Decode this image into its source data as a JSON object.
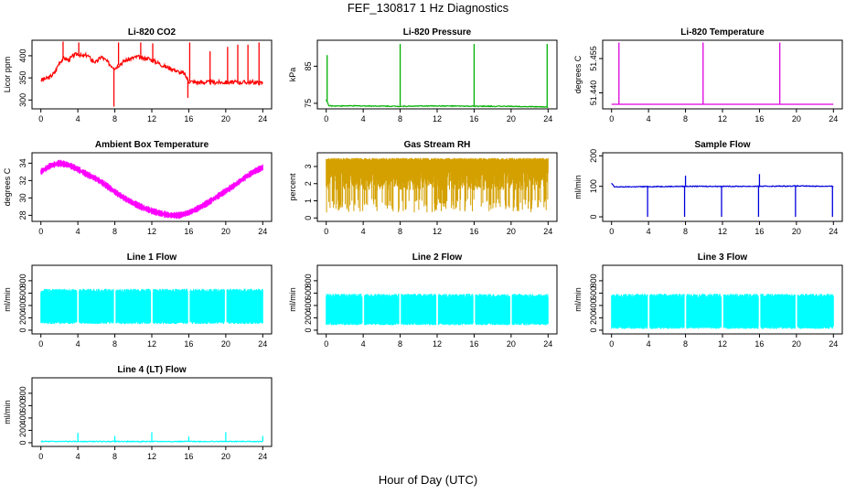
{
  "figure": {
    "title": "FEF_130817  1 Hz Diagnostics",
    "xlabel": "Hour of Day (UTC)"
  },
  "chart_data": [
    {
      "type": "line",
      "title": "Li-820 CO2",
      "ylabel": "Licor ppm",
      "color": "#ff0000",
      "xlim": [
        0,
        24
      ],
      "xticks": [
        "0",
        "4",
        "8",
        "12",
        "16",
        "20",
        "24"
      ],
      "ylim": [
        280,
        435
      ],
      "yticks": [
        "300",
        "350",
        "400"
      ],
      "series": [
        {
          "x": [
            0,
            0.5,
            1,
            1.5,
            2,
            2.5,
            3,
            3.5,
            4,
            4.5,
            5,
            5.5,
            6,
            6.5,
            7,
            7.5,
            8,
            8.5,
            9,
            9.5,
            10,
            10.5,
            11,
            11.5,
            12,
            12.5,
            13,
            13.5,
            14,
            14.5,
            15,
            15.5,
            16,
            17,
            18,
            19,
            20,
            21,
            22,
            23,
            24
          ],
          "y": [
            345,
            348,
            352,
            362,
            385,
            395,
            390,
            400,
            405,
            398,
            402,
            390,
            385,
            398,
            390,
            380,
            372,
            380,
            388,
            392,
            395,
            398,
            393,
            395,
            390,
            386,
            380,
            375,
            372,
            368,
            362,
            360,
            342,
            340,
            340,
            340,
            340,
            340,
            340,
            340,
            338
          ]
        }
      ],
      "spikes": [
        {
          "x": 2.4,
          "y": 432
        },
        {
          "x": 4.1,
          "y": 430
        },
        {
          "x": 7.9,
          "y": 285
        },
        {
          "x": 8.4,
          "y": 430
        },
        {
          "x": 10.8,
          "y": 430
        },
        {
          "x": 12.1,
          "y": 428
        },
        {
          "x": 15.9,
          "y": 305
        },
        {
          "x": 16.1,
          "y": 430
        },
        {
          "x": 18.3,
          "y": 410
        },
        {
          "x": 20.2,
          "y": 420
        },
        {
          "x": 21.3,
          "y": 425
        },
        {
          "x": 22.4,
          "y": 425
        },
        {
          "x": 23.6,
          "y": 430
        }
      ]
    },
    {
      "type": "line",
      "title": "Li-820 Pressure",
      "ylabel": "kPa",
      "color": "#00b000",
      "xlim": [
        0,
        24
      ],
      "xticks": [
        "0",
        "4",
        "8",
        "12",
        "16",
        "20",
        "24"
      ],
      "ylim": [
        73.5,
        92
      ],
      "yticks": [
        "75",
        "85"
      ],
      "series": [
        {
          "x": [
            0,
            0.3,
            4,
            8,
            12,
            16,
            20,
            24
          ],
          "y": [
            76,
            74.3,
            74.3,
            74.2,
            74.3,
            74.2,
            74.2,
            74.0
          ]
        }
      ],
      "spikes": [
        {
          "x": 0.1,
          "y": 88
        },
        {
          "x": 8.0,
          "y": 91
        },
        {
          "x": 16.0,
          "y": 91
        },
        {
          "x": 23.9,
          "y": 91
        }
      ]
    },
    {
      "type": "line",
      "title": "Li-820 Temperature",
      "ylabel": "degrees C",
      "color": "#dd00dd",
      "xlim": [
        0,
        24
      ],
      "xticks": [
        "0",
        "4",
        "8",
        "12",
        "16",
        "20",
        "24"
      ],
      "ylim": [
        51.433,
        51.463
      ],
      "yticks": [
        "51.440",
        "51.455"
      ],
      "series": [
        {
          "x": [
            0,
            24
          ],
          "y": [
            51.435,
            51.435
          ]
        }
      ],
      "spikes": [
        {
          "x": 0.8,
          "y": 51.462
        },
        {
          "x": 9.9,
          "y": 51.462
        },
        {
          "x": 18.2,
          "y": 51.462
        }
      ]
    },
    {
      "type": "line",
      "title": "Ambient Box Temperature",
      "ylabel": "degrees C",
      "color": "#ff00ff",
      "xlim": [
        0,
        24
      ],
      "xticks": [
        "0",
        "4",
        "8",
        "12",
        "16",
        "20",
        "24"
      ],
      "ylim": [
        27.3,
        35.2
      ],
      "yticks": [
        "28",
        "30",
        "32",
        "34"
      ],
      "series": [
        {
          "x": [
            0,
            1,
            2,
            3,
            4,
            5,
            6,
            7,
            8,
            9,
            10,
            11,
            12,
            13,
            14,
            15,
            16,
            17,
            18,
            19,
            20,
            21,
            22,
            23,
            24
          ],
          "y": [
            33.0,
            33.7,
            34.0,
            33.8,
            33.3,
            32.7,
            32.2,
            31.5,
            30.7,
            30.0,
            29.4,
            28.9,
            28.5,
            28.2,
            28.0,
            28.0,
            28.3,
            28.8,
            29.4,
            30.1,
            30.8,
            31.5,
            32.3,
            33.0,
            33.5
          ]
        }
      ],
      "band": 0.55
    },
    {
      "type": "line",
      "title": "Gas Stream RH",
      "ylabel": "percent",
      "color": "#d4a000",
      "xlim": [
        0,
        24
      ],
      "xticks": [
        "0",
        "4",
        "8",
        "12",
        "16",
        "20",
        "24"
      ],
      "ylim": [
        -0.2,
        3.8
      ],
      "yticks": [
        "0",
        "1",
        "2",
        "3"
      ],
      "series": [
        {
          "x": [
            0,
            24
          ],
          "y": [
            3.5,
            3.5
          ]
        }
      ],
      "band_low": 0.3
    },
    {
      "type": "line",
      "title": "Sample Flow",
      "ylabel": "ml/min",
      "color": "#0000dd",
      "xlim": [
        0,
        24
      ],
      "xticks": [
        "0",
        "4",
        "8",
        "12",
        "16",
        "20",
        "24"
      ],
      "ylim": [
        -15,
        210
      ],
      "yticks": [
        "0",
        "100",
        "200"
      ],
      "series": [
        {
          "x": [
            0,
            0.3,
            4,
            8,
            12,
            16,
            20,
            24
          ],
          "y": [
            110,
            98,
            99,
            100,
            100,
            100,
            101,
            100
          ]
        }
      ],
      "spikes": [
        {
          "x": 3.9,
          "y": 0
        },
        {
          "x": 7.9,
          "y": 0
        },
        {
          "x": 11.9,
          "y": 0
        },
        {
          "x": 15.9,
          "y": 0
        },
        {
          "x": 19.9,
          "y": 0
        },
        {
          "x": 23.9,
          "y": 0
        },
        {
          "x": 8.0,
          "y": 135
        },
        {
          "x": 16.0,
          "y": 140
        }
      ]
    },
    {
      "type": "area",
      "title": "Line 1 Flow",
      "ylabel": "ml/min",
      "color": "#00ffff",
      "xlim": [
        0,
        24
      ],
      "xticks": [
        "0",
        "4",
        "8",
        "12",
        "16",
        "20",
        "24"
      ],
      "ylim": [
        -60,
        1050
      ],
      "yticks": [
        "0",
        "200",
        "400",
        "600",
        "800"
      ],
      "series": [
        {
          "x": [
            0,
            24
          ],
          "high": [
            640,
            640
          ],
          "low": [
            100,
            100
          ]
        }
      ],
      "gaps": [
        4,
        8,
        12,
        16,
        20
      ]
    },
    {
      "type": "area",
      "title": "Line 2 Flow",
      "ylabel": "ml/min",
      "color": "#00ffff",
      "xlim": [
        0,
        24
      ],
      "xticks": [
        "0",
        "4",
        "8",
        "12",
        "16",
        "20",
        "24"
      ],
      "ylim": [
        -60,
        1050
      ],
      "yticks": [
        "0",
        "200",
        "400",
        "600",
        "800"
      ],
      "series": [
        {
          "x": [
            0,
            24
          ],
          "high": [
            560,
            560
          ],
          "low": [
            80,
            80
          ]
        }
      ],
      "gaps": [
        4,
        8,
        12,
        16,
        20
      ]
    },
    {
      "type": "area",
      "title": "Line 3 Flow",
      "ylabel": "ml/min",
      "color": "#00ffff",
      "xlim": [
        0,
        24
      ],
      "xticks": [
        "0",
        "4",
        "8",
        "12",
        "16",
        "20",
        "24"
      ],
      "ylim": [
        -60,
        1050
      ],
      "yticks": [
        "0",
        "200",
        "400",
        "600",
        "800"
      ],
      "series": [
        {
          "x": [
            0,
            24
          ],
          "high": [
            560,
            560
          ],
          "low": [
            20,
            20
          ]
        }
      ],
      "gaps": [
        4,
        8,
        12,
        16,
        20
      ]
    },
    {
      "type": "line",
      "title": "Line 4 (LT) Flow",
      "ylabel": "ml/min",
      "color": "#00ffff",
      "xlim": [
        0,
        24
      ],
      "xticks": [
        "0",
        "4",
        "8",
        "12",
        "16",
        "20",
        "24"
      ],
      "ylim": [
        -60,
        1050
      ],
      "yticks": [
        "0",
        "200",
        "400",
        "600",
        "800"
      ],
      "series": [
        {
          "x": [
            0,
            24
          ],
          "y": [
            20,
            20
          ]
        }
      ],
      "spikes": [
        {
          "x": 4.0,
          "y": 160
        },
        {
          "x": 8.0,
          "y": 110
        },
        {
          "x": 12.0,
          "y": 170
        },
        {
          "x": 16.0,
          "y": 100
        },
        {
          "x": 20.0,
          "y": 170
        },
        {
          "x": 24.0,
          "y": 110
        }
      ]
    }
  ]
}
